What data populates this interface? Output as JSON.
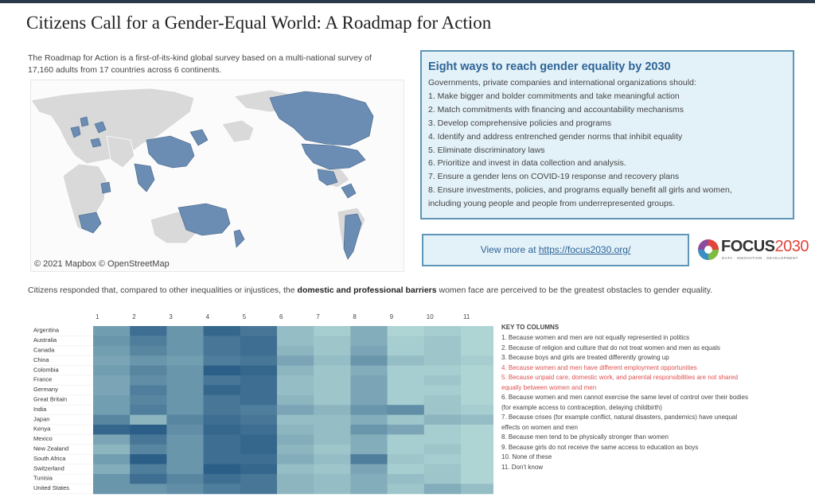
{
  "header": {
    "title": "Citizens Call for a Gender-Equal World: A Roadmap for Action"
  },
  "intro": {
    "text": "The Roadmap for Action is a first-of-its-kind global survey based on a multi-national survey of 17,160 adults from 17 countries across 6 continents."
  },
  "map": {
    "credit": "© 2021 Mapbox © OpenStreetMap",
    "highlight_color": "#6b8db3",
    "base_color": "#d9d9d9"
  },
  "ways": {
    "title": "Eight ways to reach gender equality by 2030",
    "intro": "Governments, private companies and international organizations should:",
    "items": [
      "1. Make bigger and bolder commitments and take meaningful action",
      "2. Match commitments with financing and accountability mechanisms",
      "3. Develop comprehensive policies and programs",
      "4. Identify and address entrenched gender norms that inhibit equality",
      "5. Eliminate discriminatory laws",
      "6. Prioritize and invest in data collection and analysis.",
      "7. Ensure a gender lens on COVID-19 response and recovery plans",
      "8. Ensure investments, policies, and programs equally benefit all girls and women,",
      "including young people and people from underrepresented groups."
    ]
  },
  "view_more": {
    "label": "View more at",
    "link": "https://focus2030.org/"
  },
  "logo": {
    "text_a": "FOCUS",
    "text_b": "2030",
    "tagline": "DATA · INNOVATION · DEVELOPMENT"
  },
  "responded": {
    "pre": "Citizens responded that, compared to other inequalities or injustices, the ",
    "bold": "domestic and professional barriers",
    "post": " women face are perceived to be the greatest obstacles to gender equality."
  },
  "key": {
    "title": "KEY TO COLUMNS",
    "items": [
      "1. Because women and men are not equally represented in politics",
      "2. Because of religion and culture that do not treat women and men as equals",
      "3. Because boys and girls are treated differently growing up",
      "4. Because women and men have different employment opportunities",
      "5. Because unpaid care, domestic work, and parental responsibilities are not shared",
      "equally between women and men",
      "6. Because women and men cannot exercise the same level of control over their bodies",
      "(for example access to contraception, delaying childbirth)",
      "7. Because crises (for example conflict, natural disasters, pandemics) have unequal",
      "effects on women and men",
      "8. Because men tend to be physically stronger than women",
      "9. Because girls do not receive the same access to education as boys",
      "10. None of these",
      "11. Don't know"
    ],
    "highlight": [
      false,
      false,
      false,
      true,
      true,
      true,
      false,
      false,
      false,
      false,
      false,
      false,
      false,
      false
    ]
  },
  "chart_data": {
    "type": "heatmap",
    "title": "",
    "xlabel": "",
    "ylabel": "",
    "columns": [
      "1",
      "2",
      "3",
      "4",
      "5",
      "6",
      "7",
      "8",
      "9",
      "10",
      "11"
    ],
    "rows": [
      "Argentina",
      "Australia",
      "Canada",
      "China",
      "Colombia",
      "France",
      "Germany",
      "Great Britain",
      "India",
      "Japan",
      "Kenya",
      "Mexico",
      "New Zealand",
      "South Africa",
      "Switzerland",
      "Tunisia",
      "United States"
    ],
    "values": [
      [
        0.5,
        0.8,
        0.55,
        0.85,
        0.75,
        0.3,
        0.2,
        0.4,
        0.15,
        0.2,
        0.15
      ],
      [
        0.55,
        0.7,
        0.55,
        0.75,
        0.8,
        0.3,
        0.25,
        0.4,
        0.2,
        0.25,
        0.15
      ],
      [
        0.5,
        0.65,
        0.55,
        0.75,
        0.8,
        0.35,
        0.25,
        0.45,
        0.2,
        0.25,
        0.15
      ],
      [
        0.45,
        0.55,
        0.5,
        0.7,
        0.75,
        0.45,
        0.3,
        0.55,
        0.3,
        0.25,
        0.2
      ],
      [
        0.5,
        0.65,
        0.55,
        0.9,
        0.85,
        0.35,
        0.25,
        0.4,
        0.2,
        0.2,
        0.15
      ],
      [
        0.45,
        0.6,
        0.55,
        0.75,
        0.8,
        0.3,
        0.25,
        0.45,
        0.2,
        0.25,
        0.15
      ],
      [
        0.45,
        0.7,
        0.55,
        0.85,
        0.8,
        0.3,
        0.25,
        0.45,
        0.2,
        0.2,
        0.15
      ],
      [
        0.5,
        0.65,
        0.55,
        0.75,
        0.8,
        0.35,
        0.25,
        0.45,
        0.2,
        0.25,
        0.15
      ],
      [
        0.5,
        0.7,
        0.55,
        0.75,
        0.7,
        0.45,
        0.35,
        0.55,
        0.6,
        0.25,
        0.2
      ],
      [
        0.65,
        0.35,
        0.65,
        0.8,
        0.75,
        0.3,
        0.3,
        0.4,
        0.25,
        0.35,
        0.3
      ],
      [
        0.85,
        0.9,
        0.6,
        0.85,
        0.8,
        0.35,
        0.3,
        0.55,
        0.45,
        0.2,
        0.15
      ],
      [
        0.45,
        0.75,
        0.55,
        0.8,
        0.85,
        0.4,
        0.3,
        0.4,
        0.2,
        0.2,
        0.15
      ],
      [
        0.35,
        0.65,
        0.55,
        0.8,
        0.85,
        0.35,
        0.25,
        0.4,
        0.2,
        0.25,
        0.15
      ],
      [
        0.5,
        0.9,
        0.55,
        0.8,
        0.8,
        0.4,
        0.3,
        0.7,
        0.25,
        0.2,
        0.15
      ],
      [
        0.4,
        0.7,
        0.55,
        0.9,
        0.85,
        0.3,
        0.25,
        0.45,
        0.2,
        0.25,
        0.15
      ],
      [
        0.55,
        0.8,
        0.65,
        0.8,
        0.75,
        0.35,
        0.3,
        0.4,
        0.3,
        0.25,
        0.15
      ],
      [
        0.55,
        0.55,
        0.6,
        0.7,
        0.75,
        0.35,
        0.3,
        0.4,
        0.25,
        0.4,
        0.3
      ]
    ],
    "color_scale": [
      "#c9ece3",
      "#1b4f7e"
    ]
  }
}
